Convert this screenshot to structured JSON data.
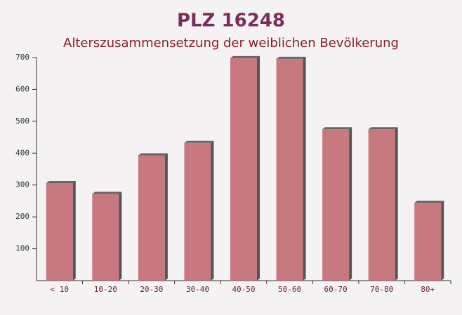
{
  "chart_data": {
    "type": "bar",
    "title": "PLZ 16248",
    "subtitle": "Alterszusammensetzung der weiblichen Bevölkerung",
    "categories": [
      "< 10",
      "10-20",
      "20-30",
      "30-40",
      "40-50",
      "50-60",
      "60-70",
      "70-80",
      "80+"
    ],
    "values": [
      306,
      272,
      393,
      432,
      698,
      696,
      475,
      475,
      244
    ],
    "color": "#c0636b",
    "ylim": [
      0,
      700
    ],
    "yticks": [
      100,
      200,
      300,
      400,
      500,
      600,
      700
    ],
    "grid": false
  }
}
